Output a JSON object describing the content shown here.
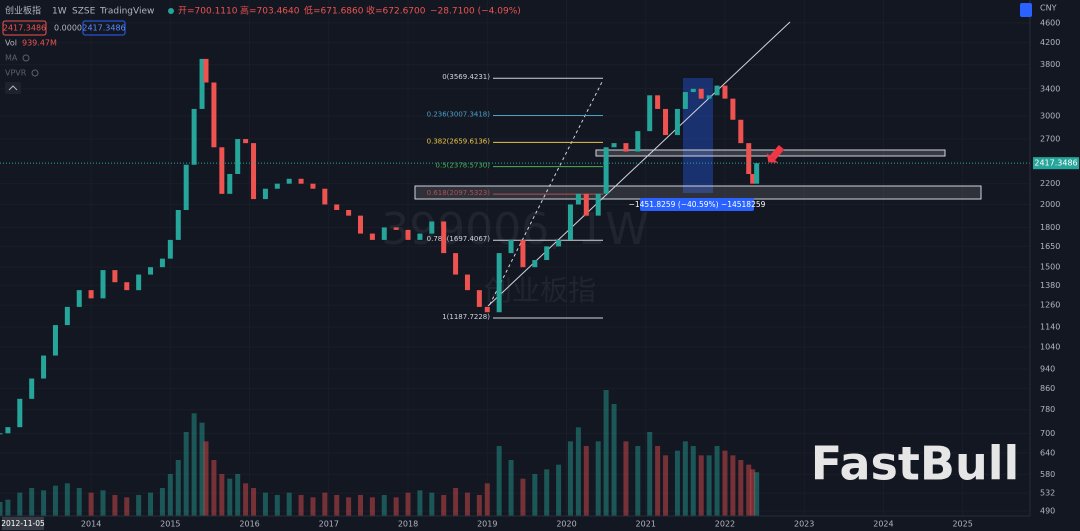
{
  "header": {
    "symbol": "创业板指",
    "interval": "1W",
    "exchange": "SZSE",
    "source": "TradingView",
    "open": "开=700.1110",
    "high": "高=703.4640",
    "low": "低=671.6860",
    "close": "收=672.6700",
    "change": "−28.7100 (−4.09%)",
    "bid": "2417.3486",
    "spread": "0.0000",
    "ask": "2417.3486"
  },
  "indicators": [
    {
      "name": "Vol",
      "value": "939.47M"
    },
    {
      "name": "MA"
    },
    {
      "name": "VPVR"
    }
  ],
  "currency": "CNY",
  "watermark": {
    "line1": "399006, 1W",
    "line2": "创业板指"
  },
  "logo": "FastBull",
  "price_axis": {
    "scale": "log",
    "ylim": [
      479,
      5110
    ],
    "ticks": [
      4600,
      4200,
      3800,
      3400,
      3000,
      2700,
      2200,
      2000,
      1800,
      1650,
      1500,
      1380,
      1260,
      1140,
      1040,
      940,
      860,
      780,
      700,
      640,
      580,
      532,
      490
    ],
    "current": {
      "value": 2417.3486,
      "label": "2417.3486"
    }
  },
  "time_axis": {
    "xlim": [
      2012.85,
      2025.85
    ],
    "ticks": [
      {
        "value": 2012.85,
        "label": "2012-11-05"
      },
      2014,
      2015,
      2016,
      2017,
      2018,
      2019,
      2020,
      2021,
      2022,
      2023,
      2024,
      2025
    ]
  },
  "series": {
    "up_color": "#26a69a",
    "down_color": "#ef5350",
    "volume_lim": [
      0,
      3000
    ],
    "x": [
      2012.85,
      2012.95,
      2013.1,
      2013.25,
      2013.4,
      2013.55,
      2013.7,
      2013.85,
      2014.0,
      2014.15,
      2014.3,
      2014.45,
      2014.6,
      2014.75,
      2014.9,
      2015.0,
      2015.1,
      2015.2,
      2015.3,
      2015.4,
      2015.45,
      2015.55,
      2015.65,
      2015.75,
      2015.85,
      2015.95,
      2016.05,
      2016.2,
      2016.35,
      2016.5,
      2016.65,
      2016.8,
      2016.95,
      2017.1,
      2017.25,
      2017.4,
      2017.55,
      2017.7,
      2017.85,
      2018.0,
      2018.15,
      2018.3,
      2018.45,
      2018.6,
      2018.75,
      2018.9,
      2019.0,
      2019.15,
      2019.3,
      2019.45,
      2019.6,
      2019.75,
      2019.9,
      2020.05,
      2020.15,
      2020.25,
      2020.4,
      2020.5,
      2020.6,
      2020.75,
      2020.9,
      2021.05,
      2021.15,
      2021.25,
      2021.4,
      2021.5,
      2021.6,
      2021.7,
      2021.8,
      2021.9,
      2022.0,
      2022.1,
      2022.2,
      2022.3,
      2022.35,
      2022.4
    ],
    "close": [
      700,
      720,
      820,
      900,
      1000,
      1150,
      1250,
      1350,
      1300,
      1480,
      1400,
      1350,
      1450,
      1500,
      1560,
      1700,
      1950,
      2400,
      3100,
      3900,
      3500,
      2600,
      2100,
      2300,
      2700,
      2650,
      2050,
      2150,
      2200,
      2250,
      2200,
      2150,
      2000,
      1950,
      1900,
      1750,
      1700,
      1800,
      1780,
      1700,
      1750,
      1850,
      1600,
      1450,
      1350,
      1250,
      1220,
      1600,
      1700,
      1500,
      1550,
      1650,
      1700,
      2000,
      2100,
      1900,
      2100,
      2600,
      2650,
      2550,
      2800,
      3300,
      3100,
      2750,
      3100,
      3350,
      3400,
      3250,
      3300,
      3450,
      3250,
      2950,
      2650,
      2300,
      2200,
      2417.3486
    ],
    "volume": [
      300,
      350,
      500,
      600,
      550,
      650,
      700,
      600,
      500,
      550,
      450,
      400,
      450,
      500,
      600,
      900,
      1200,
      1800,
      2200,
      2000,
      1600,
      1200,
      900,
      800,
      900,
      700,
      600,
      500,
      450,
      500,
      450,
      400,
      500,
      450,
      400,
      450,
      400,
      450,
      400,
      500,
      550,
      500,
      450,
      600,
      500,
      450,
      700,
      1500,
      1200,
      800,
      900,
      1000,
      1100,
      1600,
      1900,
      1500,
      1600,
      2700,
      2400,
      1600,
      1500,
      1800,
      1500,
      1300,
      1400,
      1600,
      1500,
      1300,
      1300,
      1500,
      1400,
      1300,
      1200,
      1100,
      1000,
      939.47
    ]
  },
  "fibonacci": {
    "levels": [
      {
        "label": "0(3569.4231)",
        "value": 3569.4231,
        "color": "#d1d4dc"
      },
      {
        "label": "0.236(3007.3418)",
        "value": 3007.3418,
        "color": "#4ba0c8"
      },
      {
        "label": "0.382(2659.6136)",
        "value": 2659.6136,
        "color": "#e8c547"
      },
      {
        "label": "0.5(2378.5730)",
        "value": 2378.573,
        "color": "#4caf50"
      },
      {
        "label": "0.618(2097.5323)",
        "value": 2097.5323,
        "color": "#b05050"
      },
      {
        "label": "0.786(1697.4067)",
        "value": 1697.4067,
        "color": "#d1d4dc"
      },
      {
        "label": "1(1187.7228)",
        "value": 1187.7228,
        "color": "#d1d4dc"
      }
    ]
  },
  "measure": {
    "label": "−1451.8259 (−40.59%) −14518259"
  }
}
